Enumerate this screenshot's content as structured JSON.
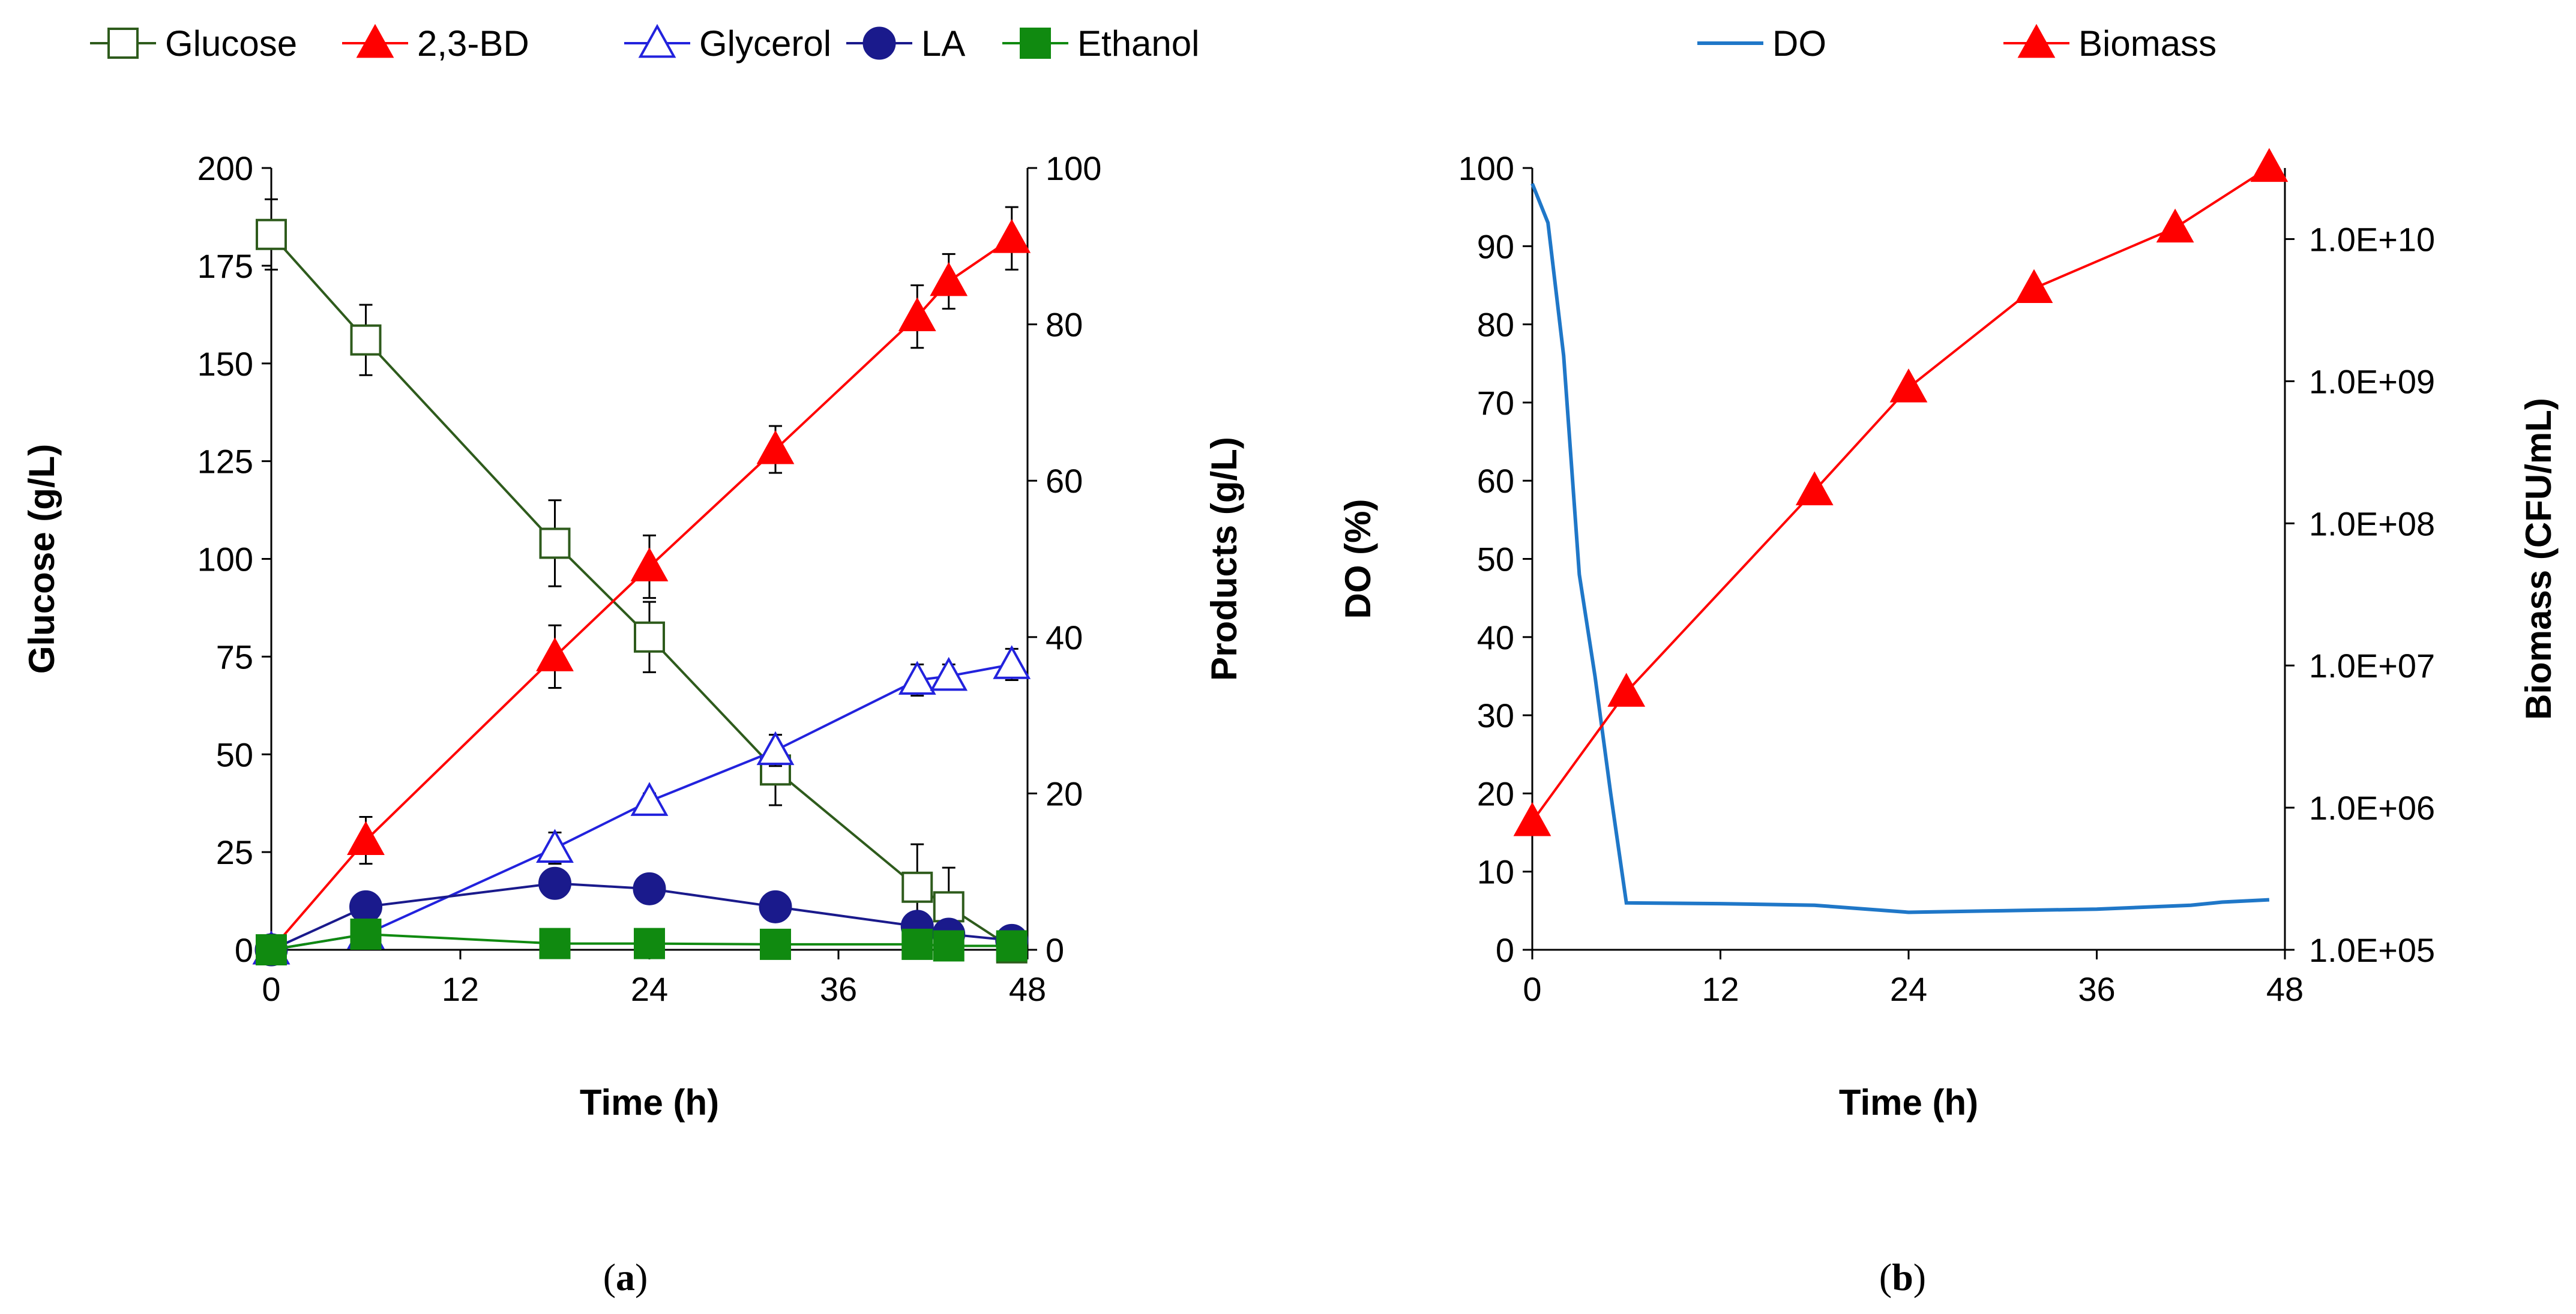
{
  "chart_data": [
    {
      "type": "line",
      "panel": "a",
      "caption": {
        "open": "(",
        "letter": "a",
        "close": ")"
      },
      "xlabel": "Time (h)",
      "ylabel_left": "Glucose (g/L)",
      "ylabel_right": "Products (g/L)",
      "xlim": [
        0,
        48
      ],
      "xticks": [
        0,
        12,
        24,
        36,
        48
      ],
      "ylim_left": [
        0,
        200
      ],
      "yticks_left": [
        0,
        25,
        50,
        75,
        100,
        125,
        150,
        175,
        200
      ],
      "ylim_right": [
        0,
        100
      ],
      "yticks_right": [
        0,
        20,
        40,
        60,
        80,
        100
      ],
      "legend_position": "top",
      "series": [
        {
          "name": "Glucose",
          "axis": "left",
          "color": "#2e5b1c",
          "marker": "square-open",
          "x": [
            0,
            6,
            18,
            24,
            32,
            41,
            43,
            47
          ],
          "y": [
            183,
            156,
            104,
            80,
            46,
            16,
            11,
            0.5
          ],
          "err": [
            9,
            9,
            11,
            9,
            9,
            11,
            10,
            0
          ]
        },
        {
          "name": "2,3-BD",
          "axis": "right",
          "color": "#ff0000",
          "marker": "triangle-filled",
          "x": [
            0,
            6,
            18,
            24,
            32,
            41,
            43,
            47
          ],
          "y": [
            0,
            14,
            37.5,
            49,
            64,
            81,
            85.5,
            91
          ],
          "err": [
            0,
            3,
            4,
            4,
            3,
            4,
            3.5,
            4
          ]
        },
        {
          "name": "Glycerol",
          "axis": "right",
          "color": "#2222dd",
          "marker": "triangle-open",
          "x": [
            0,
            6,
            18,
            24,
            32,
            41,
            43,
            47
          ],
          "y": [
            0,
            2,
            13,
            19,
            25.5,
            34.5,
            35,
            36.5
          ],
          "err": [
            0,
            0.5,
            2,
            1,
            2,
            2,
            1.5,
            2
          ]
        },
        {
          "name": "LA",
          "axis": "right",
          "color": "#1a1a8c",
          "marker": "circle-filled",
          "x": [
            0,
            6,
            18,
            24,
            32,
            41,
            43,
            47
          ],
          "y": [
            0,
            5.5,
            8.5,
            7.8,
            5.5,
            3,
            2,
            1.2
          ],
          "err": [
            0,
            0,
            0,
            0,
            0,
            0,
            0,
            0
          ]
        },
        {
          "name": "Ethanol",
          "axis": "right",
          "color": "#108a10",
          "marker": "square-filled",
          "x": [
            0,
            6,
            18,
            24,
            32,
            41,
            43,
            47
          ],
          "y": [
            0,
            2,
            0.8,
            0.8,
            0.7,
            0.7,
            0.5,
            0.5
          ],
          "err": [
            0,
            0,
            0,
            0,
            0,
            0,
            0,
            0
          ]
        }
      ]
    },
    {
      "type": "line",
      "panel": "b",
      "caption": {
        "open": "(",
        "letter": "b",
        "close": ")"
      },
      "xlabel": "Time (h)",
      "ylabel_left": "DO (%)",
      "ylabel_right": "Biomass (CFU/mL)",
      "xlim": [
        0,
        48
      ],
      "xticks": [
        0,
        12,
        24,
        36,
        48
      ],
      "ylim_left": [
        0,
        100
      ],
      "yticks_left": [
        0,
        10,
        20,
        30,
        40,
        50,
        60,
        70,
        80,
        90,
        100
      ],
      "ylim_right_log10": [
        5,
        10.5
      ],
      "yticks_right": [
        {
          "value": 100000,
          "label": "1.0E+05"
        },
        {
          "value": 1000000,
          "label": "1.0E+06"
        },
        {
          "value": 10000000,
          "label": "1.0E+07"
        },
        {
          "value": 100000000,
          "label": "1.0E+08"
        },
        {
          "value": 1000000000,
          "label": "1.0E+09"
        },
        {
          "value": 10000000000,
          "label": "1.0E+10"
        }
      ],
      "legend_position": "top",
      "series": [
        {
          "name": "DO",
          "axis": "left",
          "color": "#1f77c8",
          "marker": "none",
          "x": [
            0,
            1,
            2,
            3,
            4,
            5,
            6,
            12,
            18,
            24,
            30,
            36,
            42,
            44,
            47
          ],
          "y": [
            98,
            93,
            76,
            48,
            35,
            20,
            6,
            5.9,
            5.7,
            4.8,
            5,
            5.2,
            5.7,
            6.1,
            6.4
          ]
        },
        {
          "name": "Biomass",
          "axis": "right",
          "color": "#ff0000",
          "marker": "triangle-filled",
          "x": [
            0,
            6,
            18,
            24,
            32,
            41,
            47
          ],
          "y": [
            800000,
            6500000,
            170000000,
            900000000,
            4500000000,
            12000000000,
            32000000000
          ]
        }
      ]
    }
  ]
}
